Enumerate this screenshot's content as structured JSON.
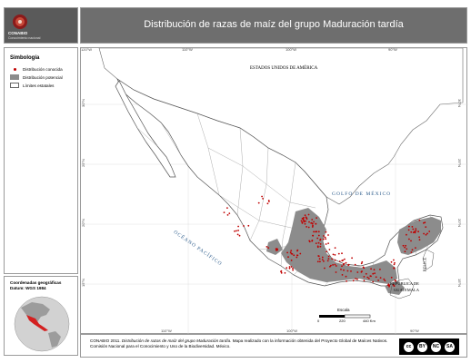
{
  "title": "Distribución de razas de maíz del grupo Maduración tardía",
  "logo": {
    "name": "CONABIO",
    "tagline": "Conocimiento nacional"
  },
  "legend": {
    "title": "Simbología",
    "items": [
      {
        "label": "Distribución conocida",
        "symbol": "red-dot",
        "color": "#c00000"
      },
      {
        "label": "Distribución potencial",
        "symbol": "gray-fill",
        "color": "#8c8c8c"
      },
      {
        "label": "Límites estatales",
        "symbol": "outline",
        "color": "#ffffff"
      }
    ]
  },
  "coordinates": {
    "title": "Coordenadas geográficas",
    "datum": "Datum: WGS 1984"
  },
  "map_labels": {
    "usa": "ESTADOS UNIDOS DE AMÉRICA",
    "gulf": "GOLFO DE MÉXICO",
    "pacific": "OCÉANO PACÍFICO",
    "guatemala_1": "REPÚBLICA DE",
    "guatemala_2": "GUATEMALA",
    "belize": "BELICE"
  },
  "graticule": {
    "top": [
      "120°W",
      "110°W",
      "100°W",
      "90°W"
    ],
    "bottom": [
      "110°W",
      "100°W",
      "90°W"
    ],
    "left": [
      "30°N",
      "25°N",
      "20°N",
      "15°N"
    ],
    "right": [
      "30°N",
      "25°N",
      "20°N",
      "15°N"
    ]
  },
  "scale": {
    "title": "Escala",
    "ticks": [
      "0",
      "220",
      "440 Km"
    ]
  },
  "credit": {
    "lead": "CONABIO 2011.",
    "italic": "Distribución de razas de maíz del grupo Maduración tardía.",
    "rest": "Mapa realizado con la información obtenida del Proyecto Global de Maíces Nativos. Comisión Nacional para el Conocimiento y Uso de la Biodiversidad. México."
  },
  "license": [
    "cc",
    "BY",
    "NC",
    "SA"
  ],
  "colors": {
    "known": "#c00000",
    "potential": "#8c8c8c",
    "mexico_fill": "#ffffff",
    "globe_mexico": "#d42020",
    "header": "#6e6e6e"
  }
}
